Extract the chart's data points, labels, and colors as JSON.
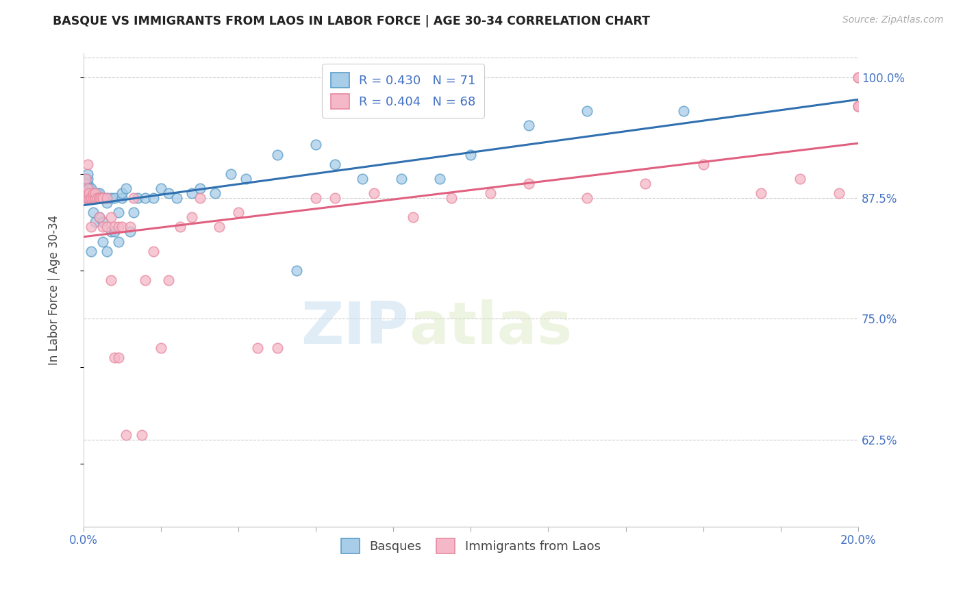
{
  "title": "BASQUE VS IMMIGRANTS FROM LAOS IN LABOR FORCE | AGE 30-34 CORRELATION CHART",
  "source": "Source: ZipAtlas.com",
  "ylabel": "In Labor Force | Age 30-34",
  "ytick_vals": [
    0.625,
    0.75,
    0.875,
    1.0
  ],
  "ytick_labels": [
    "62.5%",
    "75.0%",
    "87.5%",
    "100.0%"
  ],
  "x_min": 0.0,
  "x_max": 0.2,
  "y_min": 0.535,
  "y_max": 1.025,
  "xtick_count": 11,
  "legend_blue_label": "R = 0.430   N = 71",
  "legend_pink_label": "R = 0.404   N = 68",
  "blue_fill": "#a8cde8",
  "pink_fill": "#f5b8c8",
  "blue_edge": "#5a9dc8",
  "pink_edge": "#e88aa0",
  "blue_line": "#3070b0",
  "pink_line": "#e06080",
  "legend_text_color": "#4472c4",
  "watermark_zip": "ZIP",
  "watermark_atlas": "atlas",
  "grid_color": "#cccccc",
  "basque_x": [
    0.0005,
    0.0005,
    0.0005,
    0.0005,
    0.0005,
    0.001,
    0.001,
    0.001,
    0.001,
    0.001,
    0.001,
    0.001,
    0.0015,
    0.0015,
    0.0015,
    0.002,
    0.002,
    0.002,
    0.002,
    0.002,
    0.0025,
    0.0025,
    0.003,
    0.003,
    0.003,
    0.003,
    0.0035,
    0.0035,
    0.004,
    0.004,
    0.004,
    0.0045,
    0.005,
    0.005,
    0.005,
    0.006,
    0.006,
    0.006,
    0.007,
    0.007,
    0.008,
    0.008,
    0.009,
    0.009,
    0.01,
    0.01,
    0.011,
    0.012,
    0.013,
    0.014,
    0.016,
    0.018,
    0.02,
    0.022,
    0.024,
    0.028,
    0.03,
    0.034,
    0.038,
    0.042,
    0.05,
    0.055,
    0.06,
    0.065,
    0.072,
    0.082,
    0.092,
    0.1,
    0.115,
    0.13,
    0.155
  ],
  "basque_y": [
    0.875,
    0.88,
    0.885,
    0.89,
    0.895,
    0.875,
    0.875,
    0.88,
    0.885,
    0.89,
    0.895,
    0.9,
    0.875,
    0.88,
    0.885,
    0.875,
    0.875,
    0.88,
    0.885,
    0.82,
    0.86,
    0.88,
    0.875,
    0.875,
    0.88,
    0.85,
    0.875,
    0.88,
    0.875,
    0.855,
    0.88,
    0.875,
    0.875,
    0.83,
    0.85,
    0.875,
    0.82,
    0.87,
    0.84,
    0.875,
    0.84,
    0.875,
    0.83,
    0.86,
    0.875,
    0.88,
    0.885,
    0.84,
    0.86,
    0.875,
    0.875,
    0.875,
    0.885,
    0.88,
    0.875,
    0.88,
    0.885,
    0.88,
    0.9,
    0.895,
    0.92,
    0.8,
    0.93,
    0.91,
    0.895,
    0.895,
    0.895,
    0.92,
    0.95,
    0.965,
    0.965
  ],
  "laos_x": [
    0.0005,
    0.0005,
    0.0005,
    0.001,
    0.001,
    0.001,
    0.001,
    0.001,
    0.0015,
    0.0015,
    0.002,
    0.002,
    0.002,
    0.0025,
    0.0025,
    0.003,
    0.003,
    0.003,
    0.0035,
    0.004,
    0.004,
    0.004,
    0.0045,
    0.005,
    0.005,
    0.005,
    0.006,
    0.006,
    0.007,
    0.007,
    0.008,
    0.008,
    0.009,
    0.009,
    0.01,
    0.011,
    0.012,
    0.013,
    0.015,
    0.016,
    0.018,
    0.02,
    0.022,
    0.025,
    0.028,
    0.03,
    0.035,
    0.04,
    0.045,
    0.05,
    0.06,
    0.065,
    0.075,
    0.085,
    0.095,
    0.105,
    0.115,
    0.13,
    0.145,
    0.16,
    0.175,
    0.185,
    0.195,
    0.2,
    0.2,
    0.2,
    0.2,
    0.2
  ],
  "laos_y": [
    0.875,
    0.88,
    0.895,
    0.875,
    0.875,
    0.88,
    0.885,
    0.91,
    0.875,
    0.88,
    0.845,
    0.875,
    0.875,
    0.875,
    0.88,
    0.875,
    0.875,
    0.88,
    0.875,
    0.875,
    0.855,
    0.875,
    0.875,
    0.845,
    0.875,
    0.875,
    0.845,
    0.875,
    0.79,
    0.855,
    0.71,
    0.845,
    0.71,
    0.845,
    0.845,
    0.63,
    0.845,
    0.875,
    0.63,
    0.79,
    0.82,
    0.72,
    0.79,
    0.845,
    0.855,
    0.875,
    0.845,
    0.86,
    0.72,
    0.72,
    0.875,
    0.875,
    0.88,
    0.855,
    0.875,
    0.88,
    0.89,
    0.875,
    0.89,
    0.91,
    0.88,
    0.895,
    0.88,
    0.97,
    0.97,
    0.97,
    1.0,
    1.0
  ]
}
